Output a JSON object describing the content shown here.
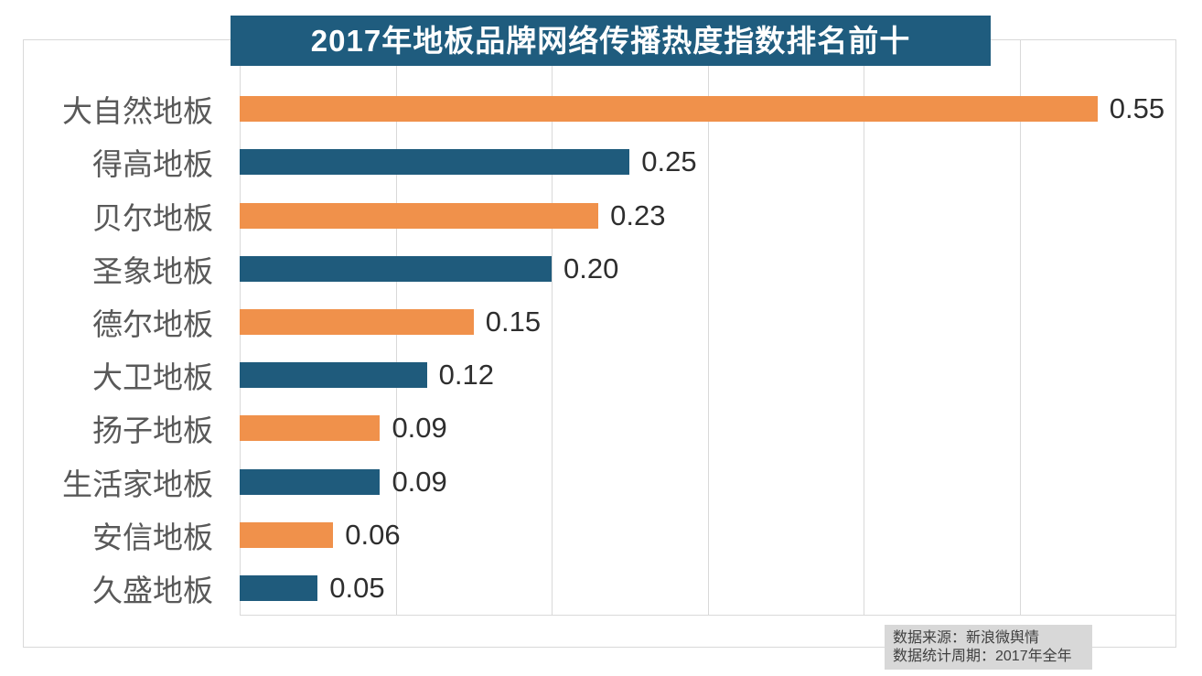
{
  "title": {
    "text": "2017年地板品牌网络传播热度指数排名前十",
    "bg_color": "#1F5C7E",
    "text_color": "#FFFFFF"
  },
  "source_note": {
    "line1": "数据来源：新浪微舆情",
    "line2": "数据统计周期：2017年全年",
    "bg_color": "#D8D8D8",
    "text_color": "#404040"
  },
  "chart_data": {
    "type": "bar",
    "orientation": "horizontal",
    "title": "2017年地板品牌网络传播热度指数排名前十",
    "categories": [
      "大自然地板",
      "得高地板",
      "贝尔地板",
      "圣象地板",
      "德尔地板",
      "大卫地板",
      "扬子地板",
      "生活家地板",
      "安信地板",
      "久盛地板"
    ],
    "values": [
      0.55,
      0.25,
      0.23,
      0.2,
      0.15,
      0.12,
      0.09,
      0.09,
      0.06,
      0.05
    ],
    "value_labels": [
      "0.55",
      "0.25",
      "0.23",
      "0.20",
      "0.15",
      "0.12",
      "0.09",
      "0.09",
      "0.06",
      "0.05"
    ],
    "bar_colors": [
      "#F0914B",
      "#1F5B7C",
      "#F0914B",
      "#1F5B7C",
      "#F0914B",
      "#1F5B7C",
      "#F0914B",
      "#1F5B7C",
      "#F0914B",
      "#1F5B7C"
    ],
    "xlabel": "",
    "ylabel": "",
    "xlim": [
      0,
      0.6
    ],
    "x_ticks": [
      0,
      0.1,
      0.2,
      0.3,
      0.4,
      0.5,
      0.6
    ],
    "tick_labels_visible": false,
    "grid": "vertical",
    "gridline_color": "#D9D9D9",
    "category_label_color": "#595959",
    "value_label_color": "#2E2E2E",
    "legend": null
  }
}
